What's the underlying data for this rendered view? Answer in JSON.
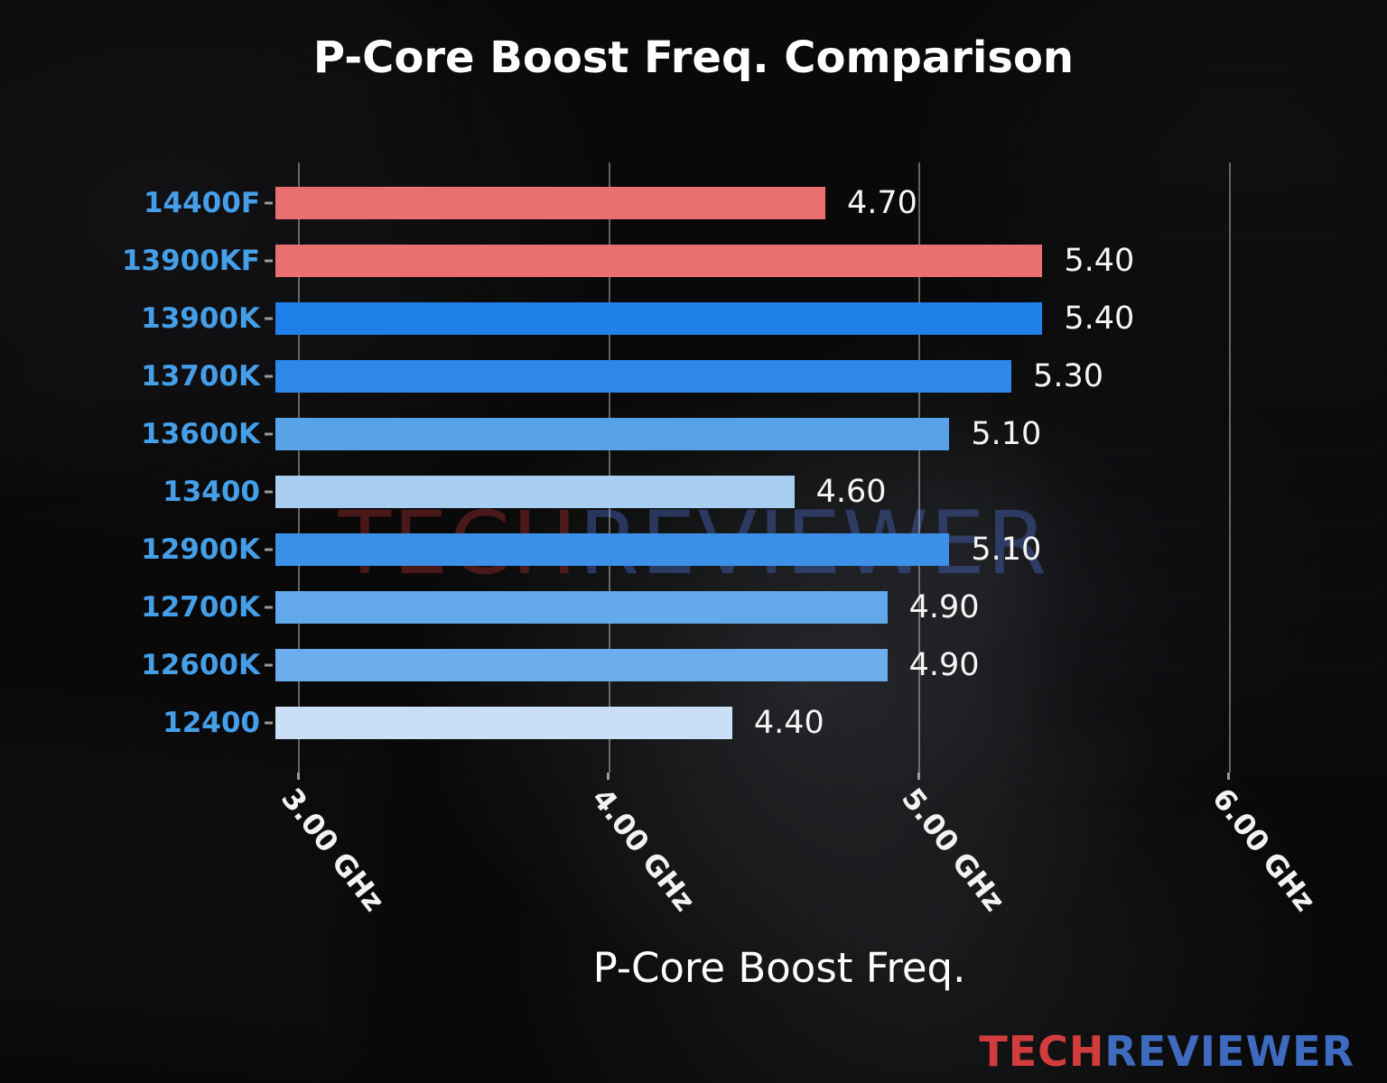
{
  "title": "P-Core Boost Freq. Comparison",
  "watermark": {
    "tech": "TECH",
    "reviewer": "REVIEWER"
  },
  "brand": {
    "tech": "TECH",
    "reviewer": "REVIEWER"
  },
  "chart_data": {
    "type": "bar",
    "orientation": "horizontal",
    "title": "P-Core Boost Freq. Comparison",
    "xlabel": "P-Core Boost Freq.",
    "x_unit": "GHz",
    "xlim": [
      2.93,
      6.1
    ],
    "grid": true,
    "legend": false,
    "xticks": [
      {
        "value": 3.0,
        "label": "3.00 GHz"
      },
      {
        "value": 4.0,
        "label": "4.00 GHz"
      },
      {
        "value": 5.0,
        "label": "5.00 GHz"
      },
      {
        "value": 6.0,
        "label": "6.00 GHz"
      }
    ],
    "categories": [
      "14400F",
      "13900KF",
      "13900K",
      "13700K",
      "13600K",
      "13400",
      "12900K",
      "12700K",
      "12600K",
      "12400"
    ],
    "values": [
      4.7,
      5.4,
      5.4,
      5.3,
      5.1,
      4.6,
      5.1,
      4.9,
      4.9,
      4.4
    ],
    "value_labels": [
      "4.70",
      "5.40",
      "5.40",
      "5.30",
      "5.10",
      "4.60",
      "5.10",
      "4.90",
      "4.90",
      "4.40"
    ],
    "bar_colors": [
      "#ea7070",
      "#ea7070",
      "#1e80e8",
      "#2e88e8",
      "#58a2e8",
      "#a8cef2",
      "#3c90e8",
      "#62a8ea",
      "#6cadee",
      "#cadff6"
    ],
    "category_label_color": "#459fe8"
  }
}
